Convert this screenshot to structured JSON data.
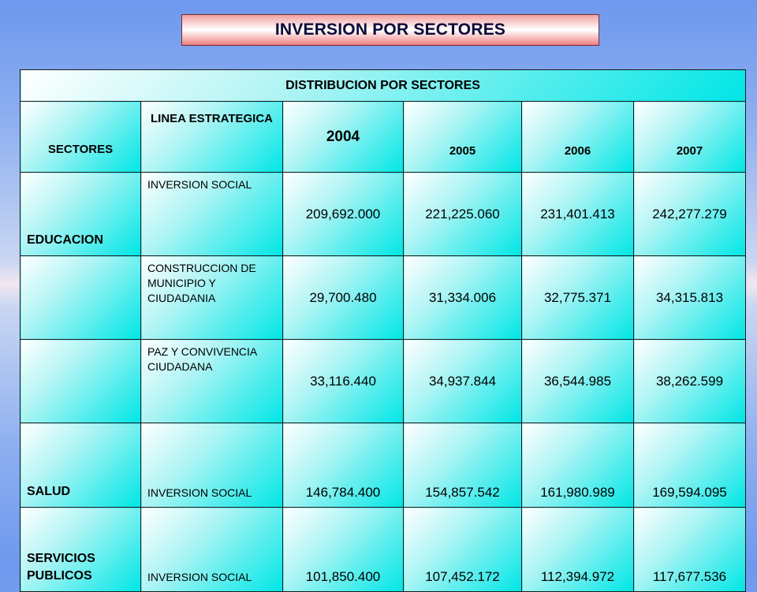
{
  "title": "INVERSION POR SECTORES",
  "table": {
    "caption": "DISTRIBUCION  POR SECTORES",
    "columns": {
      "sectores": "SECTORES",
      "linea": "LINEA ESTRATEGICA",
      "y2004": "2004",
      "y2005": "2005",
      "y2006": "2006",
      "y2007": "2007"
    },
    "rows": [
      {
        "sector": "EDUCACION",
        "linea": "INVERSION SOCIAL",
        "v2004": "209,692.000",
        "v2005": "221,225.060",
        "v2006": "231,401.413",
        "v2007": "242,277.279"
      },
      {
        "sector": "",
        "linea": "CONSTRUCCION DE MUNICIPIO Y CIUDADANIA",
        "v2004": "29,700.480",
        "v2005": "31,334.006",
        "v2006": "32,775.371",
        "v2007": "34,315.813"
      },
      {
        "sector": "",
        "linea": "PAZ Y CONVIVENCIA CIUDADANA",
        "v2004": "33,116.440",
        "v2005": "34,937.844",
        "v2006": "36,544.985",
        "v2007": "38,262.599"
      },
      {
        "sector": "SALUD",
        "linea": "INVERSION SOCIAL",
        "v2004": "146,784.400",
        "v2005": "154,857.542",
        "v2006": "161,980.989",
        "v2007": "169,594.095"
      },
      {
        "sector": "SERVICIOS PUBLICOS",
        "linea": "INVERSION SOCIAL",
        "v2004": "101,850.400",
        "v2005": "107,452.172",
        "v2006": "112,394.972",
        "v2007": "117,677.536"
      }
    ]
  }
}
